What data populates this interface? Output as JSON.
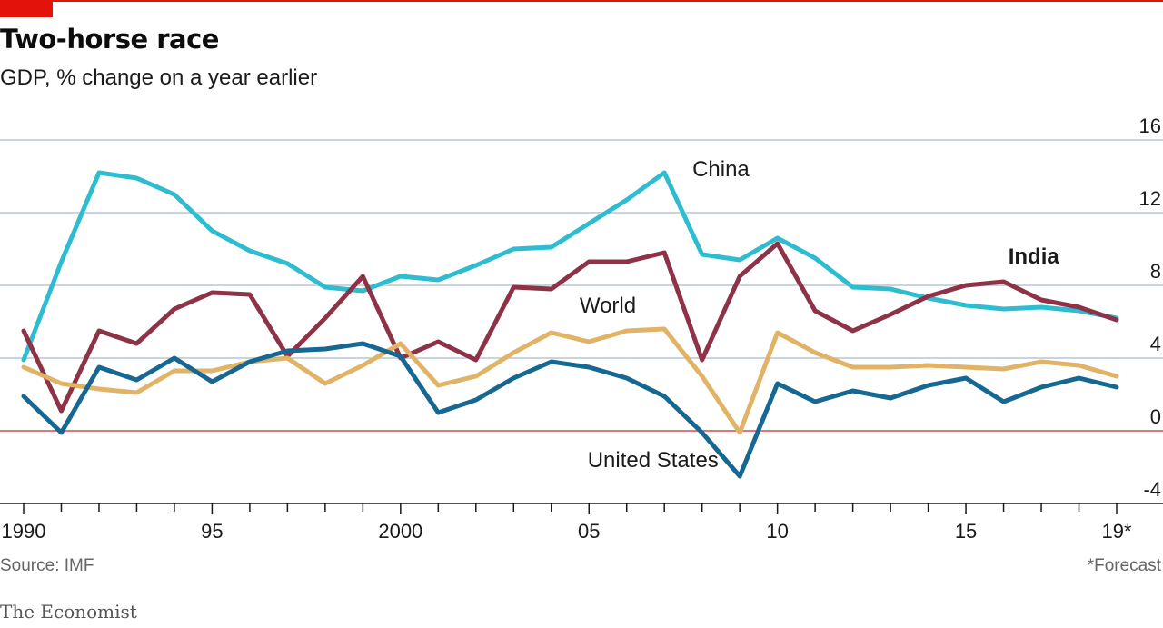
{
  "header": {
    "title": "Two-horse race",
    "subtitle": "GDP, % change on a year earlier"
  },
  "footer": {
    "source": "Source: IMF",
    "footnote": "*Forecast",
    "brand": "The Economist"
  },
  "colors": {
    "accent": "#e3120b",
    "china": "#2ebdd0",
    "india": "#8e3347",
    "world": "#e0b366",
    "united_states": "#166893",
    "grid": "#b9c6d0",
    "zero_line": "#d24b4b"
  },
  "chart_data": {
    "type": "line",
    "title": "Two-horse race",
    "subtitle": "GDP, % change on a year earlier",
    "x": [
      1990,
      1991,
      1992,
      1993,
      1994,
      1995,
      1996,
      1997,
      1998,
      1999,
      2000,
      2001,
      2002,
      2003,
      2004,
      2005,
      2006,
      2007,
      2008,
      2009,
      2010,
      2011,
      2012,
      2013,
      2014,
      2015,
      2016,
      2017,
      2018,
      2019
    ],
    "xlim": [
      1990,
      2019
    ],
    "ylim": [
      -4,
      16
    ],
    "x_ticks": [
      {
        "value": 1990,
        "label": "1990"
      },
      {
        "value": 1995,
        "label": "95"
      },
      {
        "value": 2000,
        "label": "2000"
      },
      {
        "value": 2005,
        "label": "05"
      },
      {
        "value": 2010,
        "label": "10"
      },
      {
        "value": 2015,
        "label": "15"
      },
      {
        "value": 2019,
        "label": "19*"
      }
    ],
    "y_ticks": [
      {
        "value": 16,
        "label": "16"
      },
      {
        "value": 12,
        "label": "12"
      },
      {
        "value": 8,
        "label": "8"
      },
      {
        "value": 4,
        "label": "4"
      },
      {
        "value": 0,
        "label": "0"
      },
      {
        "value": -4,
        "label": "-4"
      }
    ],
    "grid": true,
    "series": [
      {
        "key": "china",
        "name": "China",
        "label_bold": false,
        "label_at": {
          "x": 2008.5,
          "y": 14.0
        },
        "values": [
          3.9,
          9.3,
          14.2,
          13.9,
          13.0,
          11.0,
          9.9,
          9.2,
          7.9,
          7.7,
          8.5,
          8.3,
          9.1,
          10.0,
          10.1,
          11.4,
          12.7,
          14.2,
          9.7,
          9.4,
          10.6,
          9.5,
          7.9,
          7.8,
          7.3,
          6.9,
          6.7,
          6.8,
          6.6,
          6.2
        ]
      },
      {
        "key": "india",
        "name": "India",
        "label_bold": true,
        "label_at": {
          "x": 2016.8,
          "y": 9.2
        },
        "values": [
          5.5,
          1.1,
          5.5,
          4.8,
          6.7,
          7.6,
          7.5,
          4.1,
          6.2,
          8.5,
          4.0,
          4.9,
          3.9,
          7.9,
          7.8,
          9.3,
          9.3,
          9.8,
          3.9,
          8.5,
          10.3,
          6.6,
          5.5,
          6.4,
          7.4,
          8.0,
          8.2,
          7.2,
          6.8,
          6.1
        ]
      },
      {
        "key": "world",
        "name": "World",
        "label_bold": false,
        "label_at": {
          "x": 2005.5,
          "y": 6.5
        },
        "values": [
          3.5,
          2.6,
          2.3,
          2.1,
          3.3,
          3.3,
          3.8,
          4.0,
          2.6,
          3.6,
          4.8,
          2.5,
          3.0,
          4.3,
          5.4,
          4.9,
          5.5,
          5.6,
          3.0,
          -0.1,
          5.4,
          4.3,
          3.5,
          3.5,
          3.6,
          3.5,
          3.4,
          3.8,
          3.6,
          3.0
        ]
      },
      {
        "key": "united_states",
        "name": "United States",
        "label_bold": false,
        "label_at": {
          "x": 2006.7,
          "y": -2.0
        },
        "values": [
          1.9,
          -0.1,
          3.5,
          2.8,
          4.0,
          2.7,
          3.8,
          4.4,
          4.5,
          4.8,
          4.1,
          1.0,
          1.7,
          2.9,
          3.8,
          3.5,
          2.9,
          1.9,
          -0.1,
          -2.5,
          2.6,
          1.6,
          2.2,
          1.8,
          2.5,
          2.9,
          1.6,
          2.4,
          2.9,
          2.4
        ]
      }
    ]
  }
}
